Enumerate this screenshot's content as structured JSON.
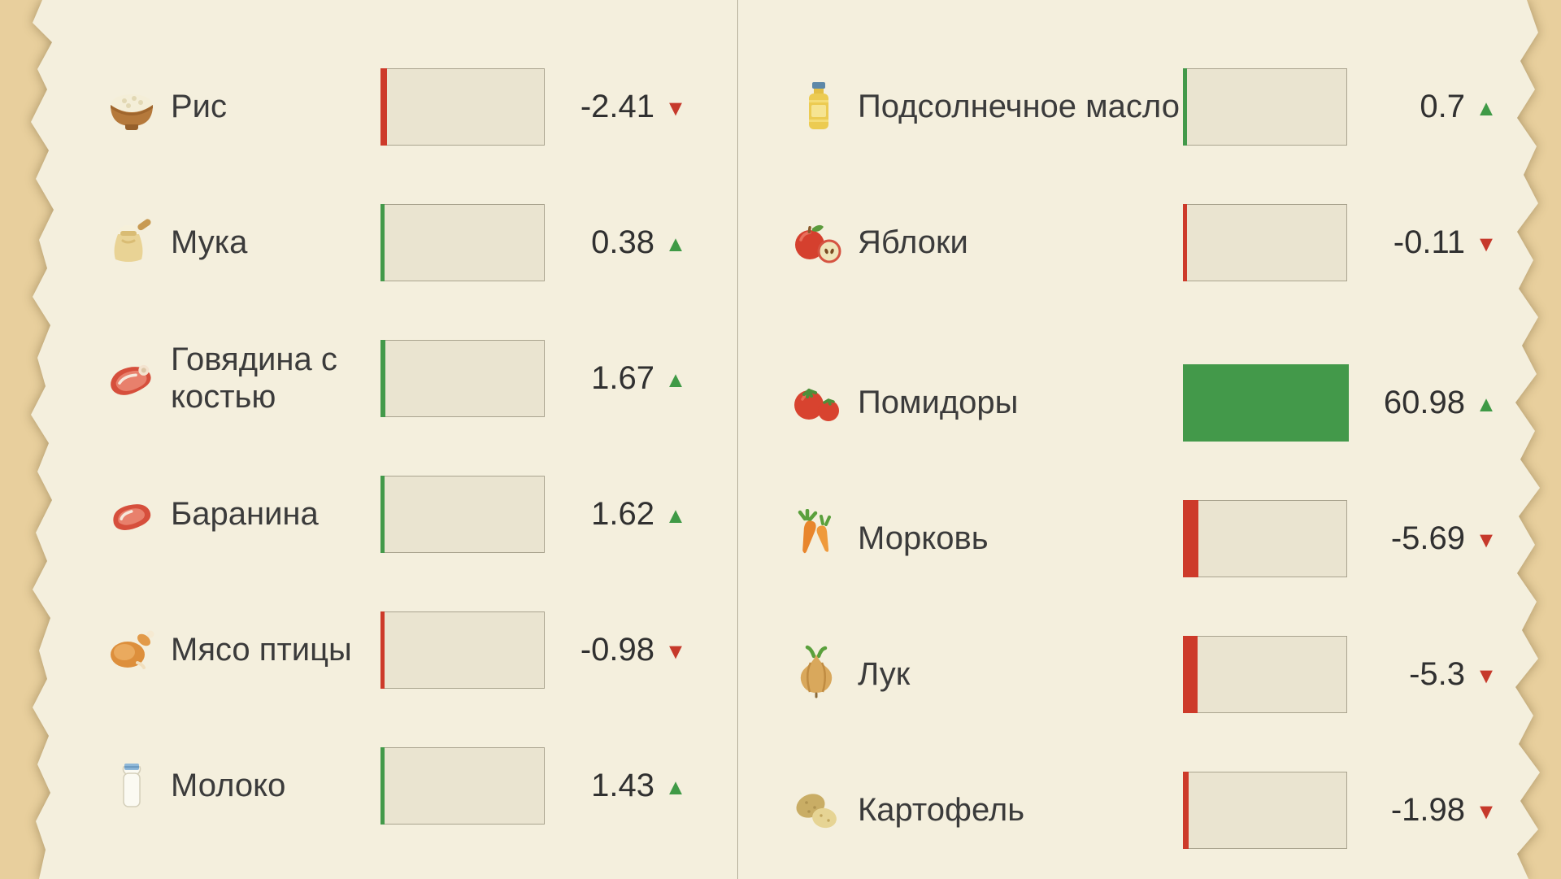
{
  "colors": {
    "up_green": "#43994a",
    "down_red": "#cd3a2a",
    "arrow_up": "#3f9a46",
    "arrow_down": "#c6392b"
  },
  "bar_scale_max": 60.98,
  "chart_data": {
    "type": "bar",
    "title": "",
    "note": "price change percentages per product, horizontal mini-bars, full scale = 60.98",
    "columns": [
      {
        "items": [
          {
            "icon": "rice-bowl-icon",
            "label": "Рис",
            "value": -2.41,
            "display_value": "-2.41",
            "trend": "down",
            "arrow": "▼"
          },
          {
            "icon": "flour-sack-icon",
            "label": "Мука",
            "value": 0.38,
            "display_value": "0.38",
            "trend": "up",
            "arrow": "▲"
          },
          {
            "icon": "beef-icon",
            "label": "Говядина с костью",
            "value": 1.67,
            "display_value": "1.67",
            "trend": "up",
            "arrow": "▲"
          },
          {
            "icon": "lamb-icon",
            "label": "Баранина",
            "value": 1.62,
            "display_value": "1.62",
            "trend": "up",
            "arrow": "▲"
          },
          {
            "icon": "poultry-icon",
            "label": "Мясо птицы",
            "value": -0.98,
            "display_value": "-0.98",
            "trend": "down",
            "arrow": "▼"
          },
          {
            "icon": "milk-bottle-icon",
            "label": "Молоко",
            "value": 1.43,
            "display_value": "1.43",
            "trend": "up",
            "arrow": "▲"
          }
        ]
      },
      {
        "items": [
          {
            "icon": "oil-bottle-icon",
            "label": "Подсолнечное масло",
            "value": 0.7,
            "display_value": "0.7",
            "trend": "up",
            "arrow": "▲"
          },
          {
            "icon": "apples-icon",
            "label": "Яблоки",
            "value": -0.11,
            "display_value": "-0.11",
            "trend": "down",
            "arrow": "▼"
          },
          {
            "icon": "tomatoes-icon",
            "label": "Помидоры",
            "value": 60.98,
            "display_value": "60.98",
            "trend": "up",
            "arrow": "▲"
          },
          {
            "icon": "carrots-icon",
            "label": "Морковь",
            "value": -5.69,
            "display_value": "-5.69",
            "trend": "down",
            "arrow": "▼"
          },
          {
            "icon": "onion-icon",
            "label": "Лук",
            "value": -5.3,
            "display_value": "-5.3",
            "trend": "down",
            "arrow": "▼"
          },
          {
            "icon": "potatoes-icon",
            "label": "Картофель",
            "value": -1.98,
            "display_value": "-1.98",
            "trend": "down",
            "arrow": "▼"
          }
        ]
      }
    ]
  }
}
